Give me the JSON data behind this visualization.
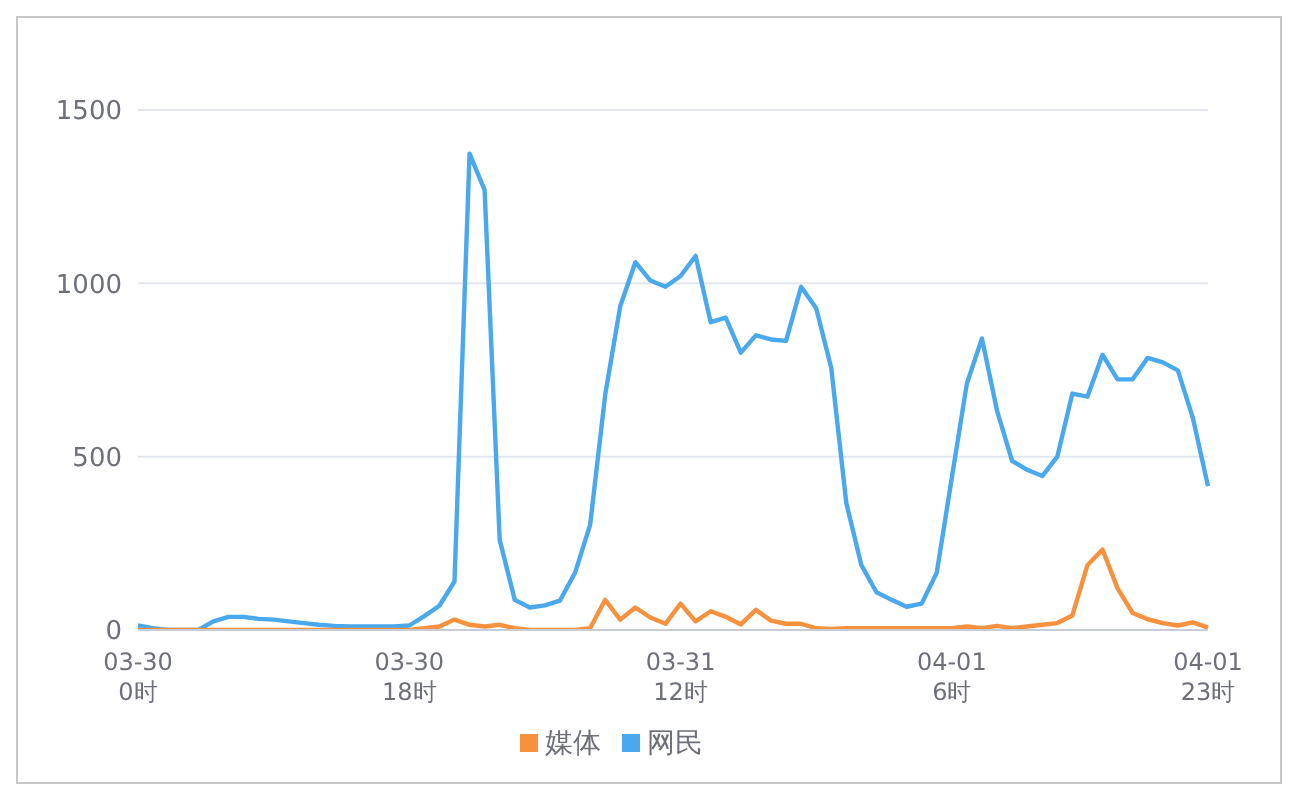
{
  "chart_data": {
    "type": "line",
    "categories": [
      "03-30\n0时",
      null,
      null,
      null,
      null,
      null,
      null,
      null,
      null,
      null,
      null,
      null,
      null,
      null,
      null,
      null,
      null,
      null,
      "03-30\n18时",
      null,
      null,
      null,
      null,
      null,
      null,
      null,
      null,
      null,
      null,
      null,
      null,
      null,
      null,
      null,
      null,
      null,
      "03-31\n12时",
      null,
      null,
      null,
      null,
      null,
      null,
      null,
      null,
      null,
      null,
      null,
      null,
      null,
      null,
      null,
      null,
      null,
      "04-01\n6时",
      null,
      null,
      null,
      null,
      null,
      null,
      null,
      null,
      null,
      null,
      null,
      null,
      null,
      null,
      null,
      null,
      "04-01\n23时"
    ],
    "series": [
      {
        "name": "网民",
        "color": "#4aa8ec",
        "values": [
          13,
          5,
          0,
          0,
          0,
          25,
          38,
          38,
          32,
          30,
          25,
          20,
          15,
          12,
          10,
          10,
          10,
          10,
          13,
          40,
          70,
          140,
          1374,
          1269,
          260,
          87,
          65,
          71,
          85,
          165,
          303,
          678,
          934,
          1061,
          1008,
          990,
          1021,
          1079,
          888,
          901,
          800,
          850,
          838,
          834,
          990,
          928,
          756,
          366,
          187,
          109,
          87,
          67,
          76,
          165,
          439,
          711,
          841,
          633,
          488,
          462,
          444,
          500,
          682,
          673,
          794,
          723,
          723,
          785,
          772,
          749,
          611,
          415
        ]
      },
      {
        "name": "媒体",
        "color": "#f7913d",
        "values": [
          0,
          0,
          0,
          0,
          0,
          0,
          0,
          0,
          0,
          0,
          0,
          0,
          0,
          0,
          0,
          0,
          0,
          0,
          0,
          5,
          10,
          30,
          15,
          10,
          15,
          5,
          0,
          0,
          0,
          0,
          5,
          87,
          30,
          65,
          36,
          18,
          76,
          25,
          54,
          38,
          16,
          58,
          27,
          18,
          18,
          5,
          3,
          5,
          5,
          5,
          5,
          5,
          5,
          5,
          5,
          10,
          5,
          12,
          5,
          10,
          15,
          20,
          42,
          187,
          232,
          120,
          49,
          31,
          20,
          13,
          22,
          7
        ]
      }
    ],
    "ylim": [
      0,
      1500
    ],
    "yticks": [
      0,
      500,
      1000,
      1500
    ],
    "grid": "y",
    "legend": "bottom",
    "marker": "none",
    "line_style": "solid"
  }
}
